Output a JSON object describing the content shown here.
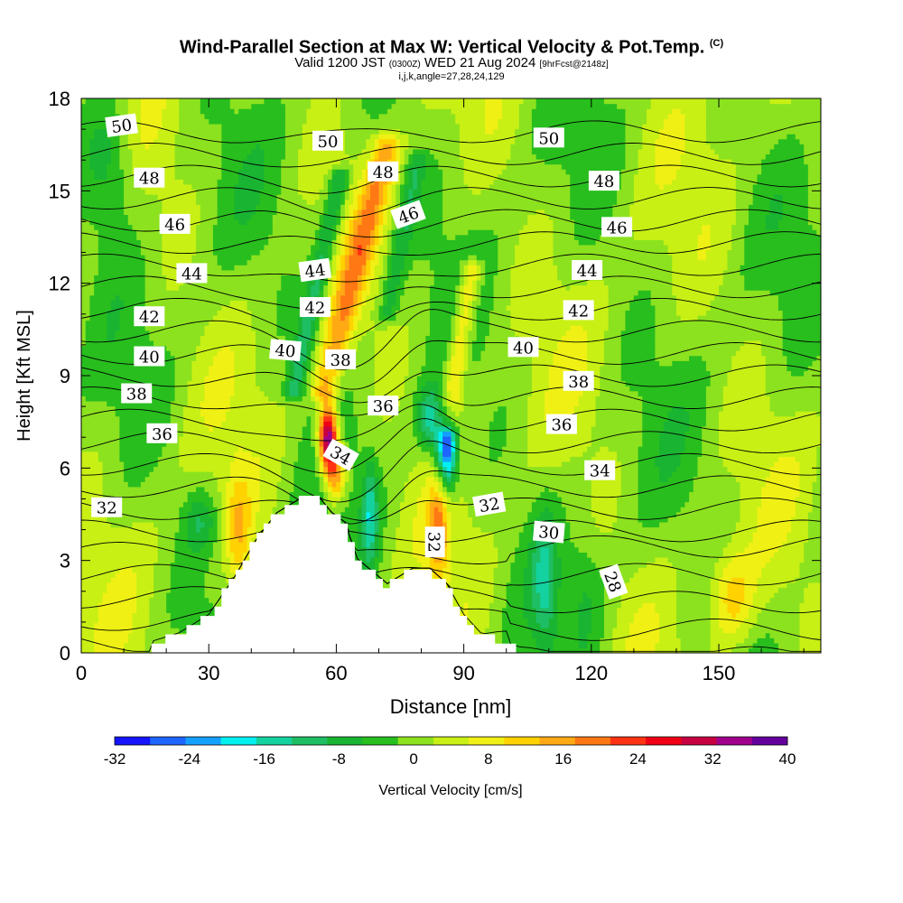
{
  "header": {
    "title": "Wind-Parallel Section at Max W: Vertical Velocity & Pot.Temp.",
    "title_tag": "(C)",
    "valid_prefix": "Valid 1200 JST",
    "valid_utc": "(0300Z)",
    "valid_date": "WED 21 Aug 2024",
    "forecast": "[9hrFcst@2148z]",
    "indices": "i,j,k,angle=27,28,24,129"
  },
  "chart_data": {
    "type": "heatmap",
    "title": "Wind-Parallel Section at Max W: Vertical Velocity & Pot.Temp.",
    "xlabel": "Distance [nm]",
    "ylabel": "Height [Kft MSL]",
    "xlim": [
      0,
      174
    ],
    "ylim": [
      0,
      18
    ],
    "x_ticks": [
      0,
      30,
      60,
      90,
      120,
      150
    ],
    "y_ticks": [
      0,
      3,
      6,
      9,
      12,
      15,
      18
    ],
    "colorbar": {
      "label": "Vertical Velocity [cm/s]",
      "ticks": [
        -32,
        -24,
        -16,
        -8,
        0,
        8,
        16,
        24,
        32,
        40
      ],
      "bounds": [
        -32,
        -28,
        -24,
        -20,
        -16,
        -12,
        -8,
        -4,
        0,
        4,
        8,
        12,
        16,
        20,
        24,
        28,
        32,
        36,
        40
      ],
      "colors": [
        "#1414ff",
        "#1e64ff",
        "#14a0ff",
        "#00f0f0",
        "#14d2a0",
        "#1ebe64",
        "#19b432",
        "#28be1e",
        "#8ce21e",
        "#c8f014",
        "#f0f014",
        "#ffd200",
        "#ffaa14",
        "#ff7814",
        "#ff3214",
        "#f00014",
        "#c80041",
        "#a0008c",
        "#64009b"
      ]
    },
    "vertical_velocity_features": [
      {
        "x": 58,
        "y": 6.9,
        "w": 40,
        "note": "updraft max"
      },
      {
        "x": 68,
        "y": 13.5,
        "w": 16
      },
      {
        "x": 86,
        "y": 6.5,
        "w": -30,
        "note": "downdraft min"
      },
      {
        "x": 60,
        "y": 12.5,
        "w": -14
      },
      {
        "x": 93,
        "y": 10.0,
        "w": 14
      },
      {
        "x": 70,
        "y": 4.5,
        "w": -14
      },
      {
        "x": 83,
        "y": 4.0,
        "w": 16
      },
      {
        "x": 37,
        "y": 4.0,
        "w": 14
      }
    ],
    "terrain_kft": [
      {
        "x": 16,
        "h": 0.3
      },
      {
        "x": 23,
        "h": 0.6
      },
      {
        "x": 30,
        "h": 1.2
      },
      {
        "x": 36,
        "h": 2.4
      },
      {
        "x": 41,
        "h": 3.6
      },
      {
        "x": 46,
        "h": 4.5
      },
      {
        "x": 52,
        "h": 5.0
      },
      {
        "x": 56,
        "h": 5.0
      },
      {
        "x": 59,
        "h": 4.5
      },
      {
        "x": 62,
        "h": 4.2
      },
      {
        "x": 65,
        "h": 3.0
      },
      {
        "x": 72,
        "h": 2.2
      },
      {
        "x": 78,
        "h": 2.7
      },
      {
        "x": 82,
        "h": 2.7
      },
      {
        "x": 86,
        "h": 2.2
      },
      {
        "x": 90,
        "h": 1.2
      },
      {
        "x": 94,
        "h": 0.6
      },
      {
        "x": 100,
        "h": 0.3
      },
      {
        "x": 106,
        "h": 0.0
      }
    ],
    "potential_temperature": {
      "units": "C",
      "levels": [
        28,
        29,
        30,
        31,
        32,
        33,
        34,
        35,
        36,
        37,
        38,
        39,
        40,
        41,
        42,
        43,
        44,
        45,
        46,
        47,
        48,
        49,
        50,
        51
      ],
      "labels": [
        {
          "text": "50",
          "x": 9.5,
          "y": 17.1,
          "angle": 8
        },
        {
          "text": "48",
          "x": 16,
          "y": 15.4
        },
        {
          "text": "46",
          "x": 22,
          "y": 13.9
        },
        {
          "text": "44",
          "x": 26,
          "y": 12.3
        },
        {
          "text": "42",
          "x": 16,
          "y": 10.9
        },
        {
          "text": "40",
          "x": 16,
          "y": 9.6
        },
        {
          "text": "38",
          "x": 13,
          "y": 8.4
        },
        {
          "text": "36",
          "x": 19,
          "y": 7.1
        },
        {
          "text": "32",
          "x": 6,
          "y": 4.7
        },
        {
          "text": "50",
          "x": 58,
          "y": 16.6
        },
        {
          "text": "48",
          "x": 71,
          "y": 15.6
        },
        {
          "text": "46",
          "x": 77,
          "y": 14.2,
          "angle": 20
        },
        {
          "text": "44",
          "x": 55,
          "y": 12.4,
          "angle": 8
        },
        {
          "text": "42",
          "x": 55,
          "y": 11.2
        },
        {
          "text": "40",
          "x": 48,
          "y": 9.8,
          "angle": -5
        },
        {
          "text": "38",
          "x": 61,
          "y": 9.5
        },
        {
          "text": "36",
          "x": 71,
          "y": 8.0
        },
        {
          "text": "34",
          "x": 61,
          "y": 6.4,
          "angle": -30
        },
        {
          "text": "32",
          "x": 83,
          "y": 3.6,
          "angle": -90
        },
        {
          "text": "32",
          "x": 96,
          "y": 4.8,
          "angle": 10
        },
        {
          "text": "30",
          "x": 110,
          "y": 3.9,
          "angle": -5
        },
        {
          "text": "28",
          "x": 125,
          "y": 2.3,
          "angle": -70
        },
        {
          "text": "50",
          "x": 110,
          "y": 16.7
        },
        {
          "text": "48",
          "x": 123,
          "y": 15.3
        },
        {
          "text": "46",
          "x": 126,
          "y": 13.8
        },
        {
          "text": "44",
          "x": 119,
          "y": 12.4
        },
        {
          "text": "42",
          "x": 117,
          "y": 11.1
        },
        {
          "text": "40",
          "x": 104,
          "y": 9.9
        },
        {
          "text": "38",
          "x": 117,
          "y": 8.8
        },
        {
          "text": "36",
          "x": 113,
          "y": 7.4
        },
        {
          "text": "34",
          "x": 122,
          "y": 5.9
        }
      ]
    }
  }
}
